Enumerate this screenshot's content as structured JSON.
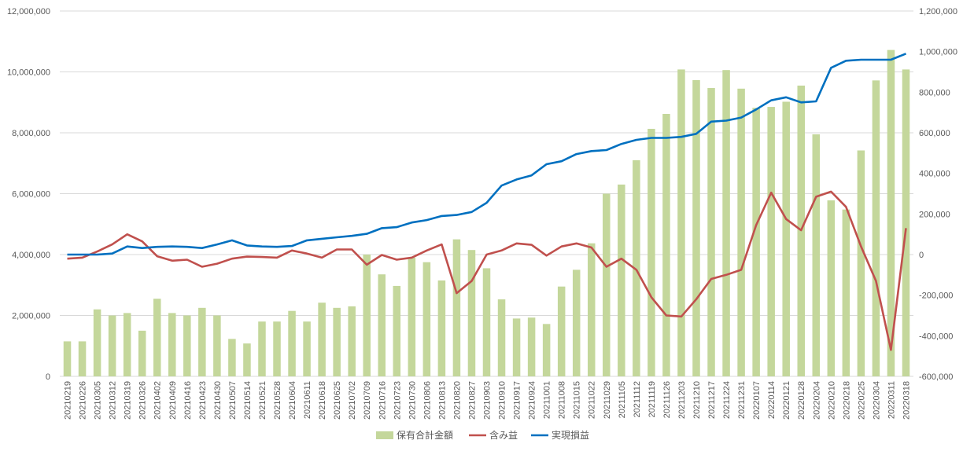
{
  "chart_data": {
    "type": "bar+line",
    "title": "",
    "x": [
      "20210219",
      "20210226",
      "20210305",
      "20210312",
      "20210319",
      "20210326",
      "20210402",
      "20210409",
      "20210416",
      "20210423",
      "20210430",
      "20210507",
      "20210514",
      "20210521",
      "20210528",
      "20210604",
      "20210611",
      "20210618",
      "20210625",
      "20210702",
      "20210709",
      "20210716",
      "20210723",
      "20210730",
      "20210806",
      "20210813",
      "20210820",
      "20210827",
      "20210903",
      "20210910",
      "20210917",
      "20210924",
      "20211001",
      "20211008",
      "20211015",
      "20211022",
      "20211029",
      "20211105",
      "20211112",
      "20211119",
      "20211126",
      "20211203",
      "20211210",
      "20211217",
      "20211224",
      "20211231",
      "20220107",
      "20220114",
      "20220121",
      "20220128",
      "20220204",
      "20220210",
      "20220218",
      "20220225",
      "20220304",
      "20220311",
      "20220318"
    ],
    "y_left": {
      "min": 0,
      "max": 12000000,
      "step": 2000000
    },
    "y_right": {
      "min": -600000,
      "max": 1200000,
      "step": 200000
    },
    "grid": true,
    "legend_position": "bottom",
    "series": [
      {
        "name": "保有合計金額",
        "kind": "bar",
        "axis": "left",
        "color": "#c4d79b",
        "values": [
          1150000,
          1150000,
          2200000,
          2000000,
          2080000,
          1500000,
          2550000,
          2080000,
          2000000,
          2250000,
          2000000,
          1230000,
          1080000,
          1800000,
          1800000,
          2150000,
          1800000,
          2420000,
          2250000,
          2300000,
          4000000,
          3350000,
          2970000,
          3900000,
          3750000,
          3150000,
          4500000,
          4150000,
          3550000,
          2530000,
          1900000,
          1930000,
          1720000,
          2950000,
          3500000,
          4370000,
          6000000,
          6300000,
          7100000,
          8130000,
          8620000,
          10080000,
          9730000,
          9470000,
          10060000,
          9450000,
          8820000,
          8850000,
          9020000,
          9550000,
          7950000,
          5780000,
          5480000,
          7420000,
          9720000,
          10720000,
          10080000
        ]
      },
      {
        "name": "含み益",
        "kind": "line",
        "axis": "right",
        "color": "#c0504d",
        "values": [
          -20000,
          -15000,
          15000,
          50000,
          100000,
          65000,
          -8000,
          -30000,
          -25000,
          -60000,
          -45000,
          -20000,
          -10000,
          -12000,
          -15000,
          20000,
          5000,
          -15000,
          25000,
          25000,
          -50000,
          -2000,
          -25000,
          -15000,
          20000,
          50000,
          -190000,
          -130000,
          0,
          20000,
          55000,
          48000,
          -5000,
          40000,
          55000,
          35000,
          -60000,
          -20000,
          -75000,
          -210000,
          -300000,
          -305000,
          -220000,
          -120000,
          -100000,
          -75000,
          145000,
          305000,
          175000,
          120000,
          285000,
          310000,
          235000,
          40000,
          -130000,
          -470000,
          130000
        ]
      },
      {
        "name": "実現損益",
        "kind": "line",
        "axis": "right",
        "color": "#0070c0",
        "values": [
          0,
          0,
          0,
          5000,
          40000,
          32000,
          38000,
          40000,
          38000,
          32000,
          50000,
          70000,
          45000,
          40000,
          38000,
          42000,
          70000,
          78000,
          85000,
          92000,
          102000,
          130000,
          135000,
          158000,
          170000,
          190000,
          195000,
          210000,
          255000,
          340000,
          370000,
          390000,
          445000,
          460000,
          495000,
          510000,
          515000,
          545000,
          565000,
          575000,
          575000,
          580000,
          595000,
          655000,
          660000,
          675000,
          715000,
          760000,
          775000,
          750000,
          755000,
          920000,
          955000,
          960000,
          960000,
          960000,
          990000
        ]
      }
    ]
  }
}
